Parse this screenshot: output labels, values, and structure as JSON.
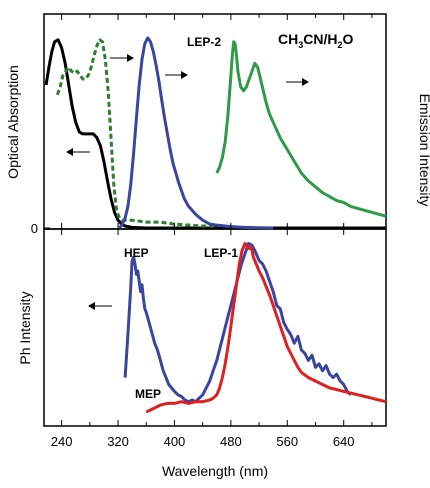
{
  "chart_data": [
    {
      "type": "line",
      "panel": "top",
      "ylabel": "Optical Absorption",
      "ylabel_right": "Emission Intensity",
      "y_tick_labels": [
        "0"
      ],
      "ylim": [
        0,
        1.0
      ],
      "xlim": [
        215,
        700
      ],
      "annotations": [
        "CH3CN/H2O",
        "LEP-2"
      ],
      "solvent_main": "CH",
      "solvent_sub1": "3",
      "solvent_mid": "CN/H",
      "solvent_sub2": "2",
      "solvent_end": "O",
      "series": [
        {
          "style": "solid",
          "color": "#000000",
          "axis": "left",
          "arrow": "left",
          "x": [
            218,
            222,
            226,
            230,
            235,
            240,
            245,
            250,
            255,
            260,
            265,
            270,
            275,
            280,
            285,
            290,
            295,
            300,
            305,
            310,
            315,
            320,
            325,
            330,
            340,
            360,
            380,
            400,
            440,
            480,
            520,
            600,
            700
          ],
          "y": [
            0.73,
            0.82,
            0.9,
            0.95,
            0.96,
            0.92,
            0.84,
            0.73,
            0.62,
            0.54,
            0.49,
            0.48,
            0.48,
            0.48,
            0.48,
            0.46,
            0.42,
            0.34,
            0.24,
            0.15,
            0.08,
            0.04,
            0.02,
            0.01,
            0.003,
            0,
            0,
            0,
            0,
            0,
            0,
            0,
            0
          ]
        },
        {
          "style": "dashed",
          "color": "#2e7d32",
          "axis": "left",
          "arrow": "left",
          "x": [
            234,
            238,
            242,
            246,
            250,
            254,
            258,
            262,
            266,
            270,
            274,
            278,
            282,
            286,
            290,
            294,
            298,
            302,
            306,
            310,
            314,
            318,
            322,
            326,
            330,
            340,
            360,
            380,
            400,
            440,
            460
          ],
          "y": [
            0.68,
            0.72,
            0.78,
            0.8,
            0.82,
            0.8,
            0.79,
            0.8,
            0.78,
            0.76,
            0.76,
            0.78,
            0.82,
            0.88,
            0.93,
            0.96,
            0.95,
            0.86,
            0.7,
            0.46,
            0.22,
            0.09,
            0.05,
            0.04,
            0.04,
            0.04,
            0.03,
            0.03,
            0.02,
            0.01,
            0.01
          ]
        },
        {
          "style": "solid",
          "color": "#3a45a0",
          "axis": "right",
          "arrow": "right",
          "x": [
            322,
            326,
            330,
            334,
            338,
            342,
            346,
            350,
            354,
            358,
            362,
            366,
            370,
            374,
            378,
            382,
            386,
            390,
            394,
            398,
            402,
            406,
            410,
            414,
            420,
            430,
            440,
            450,
            460,
            480,
            500,
            520,
            540
          ],
          "y": [
            0.0,
            0.02,
            0.05,
            0.11,
            0.22,
            0.38,
            0.56,
            0.73,
            0.86,
            0.94,
            0.97,
            0.95,
            0.9,
            0.83,
            0.75,
            0.65,
            0.56,
            0.48,
            0.4,
            0.33,
            0.28,
            0.23,
            0.19,
            0.15,
            0.11,
            0.07,
            0.04,
            0.02,
            0.015,
            0.007,
            0.003,
            0.001,
            0
          ]
        },
        {
          "style": "solid",
          "color": "#2e9a4a",
          "axis": "right",
          "arrow": "right",
          "x": [
            460,
            464,
            468,
            472,
            476,
            480,
            482,
            484,
            486,
            488,
            490,
            494,
            498,
            502,
            506,
            510,
            514,
            518,
            522,
            526,
            530,
            535,
            540,
            545,
            550,
            560,
            570,
            580,
            590,
            600,
            610,
            620,
            630,
            640,
            650,
            660,
            670,
            680,
            690,
            700
          ],
          "y": [
            0.28,
            0.31,
            0.36,
            0.44,
            0.58,
            0.78,
            0.88,
            0.95,
            0.94,
            0.88,
            0.8,
            0.72,
            0.7,
            0.72,
            0.76,
            0.8,
            0.84,
            0.82,
            0.76,
            0.7,
            0.64,
            0.58,
            0.54,
            0.5,
            0.46,
            0.4,
            0.34,
            0.28,
            0.24,
            0.21,
            0.18,
            0.16,
            0.14,
            0.13,
            0.11,
            0.1,
            0.09,
            0.08,
            0.07,
            0.06
          ]
        }
      ]
    },
    {
      "type": "line",
      "panel": "bottom",
      "xlabel": "Wavelength (nm)",
      "ylabel": "Ph Intensity",
      "xlim": [
        215,
        700
      ],
      "ylim": [
        0,
        1.0
      ],
      "x_ticks": [
        240,
        320,
        400,
        480,
        560,
        640
      ],
      "x_tick_labels": [
        "240",
        "320",
        "400",
        "480",
        "560",
        "640"
      ],
      "annotations": [
        "HEP",
        "LEP-1",
        "MEP"
      ],
      "series": [
        {
          "style": "solid",
          "color": "#3a45a0",
          "arrow": "left",
          "x": [
            330,
            334,
            338,
            340,
            342,
            344,
            346,
            348,
            350,
            352,
            354,
            356,
            358,
            360,
            364,
            368,
            372,
            376,
            380,
            384,
            388,
            392,
            396,
            400,
            405,
            410,
            415,
            420,
            425,
            430,
            435,
            440,
            445,
            450,
            455,
            460,
            465,
            470,
            475,
            480,
            485,
            490,
            495,
            500,
            505,
            510,
            515,
            520,
            525,
            530,
            535,
            540,
            545,
            550,
            555,
            560,
            565,
            570,
            575,
            580,
            585,
            590,
            595,
            600,
            605,
            610,
            615,
            620,
            625,
            630,
            635,
            640,
            645,
            650
          ],
          "y": [
            0.2,
            0.45,
            0.72,
            0.88,
            0.9,
            0.86,
            0.8,
            0.82,
            0.76,
            0.7,
            0.74,
            0.66,
            0.6,
            0.58,
            0.52,
            0.46,
            0.4,
            0.36,
            0.3,
            0.24,
            0.2,
            0.16,
            0.14,
            0.12,
            0.1,
            0.09,
            0.07,
            0.06,
            0.07,
            0.06,
            0.08,
            0.1,
            0.14,
            0.18,
            0.24,
            0.3,
            0.38,
            0.46,
            0.54,
            0.62,
            0.7,
            0.78,
            0.86,
            0.92,
            0.98,
            0.97,
            0.93,
            0.88,
            0.86,
            0.82,
            0.76,
            0.7,
            0.62,
            0.6,
            0.52,
            0.48,
            0.45,
            0.4,
            0.44,
            0.36,
            0.34,
            0.3,
            0.33,
            0.26,
            0.28,
            0.24,
            0.27,
            0.22,
            0.2,
            0.22,
            0.18,
            0.16,
            0.12,
            0.1
          ]
        },
        {
          "style": "solid",
          "color": "#e02020",
          "arrow": "none",
          "x": [
            360,
            370,
            380,
            390,
            400,
            410,
            420,
            430,
            440,
            450,
            455,
            460,
            462,
            464,
            466,
            468,
            470,
            472,
            474,
            476,
            478,
            480,
            482,
            484,
            486,
            488,
            490,
            492,
            494,
            496,
            498,
            500,
            502,
            504,
            506,
            508,
            510,
            512,
            514,
            516,
            518,
            520,
            525,
            530,
            535,
            540,
            545,
            550,
            555,
            560,
            565,
            570,
            575,
            580,
            590,
            600,
            610,
            620,
            630,
            640,
            650,
            660,
            670,
            680,
            690,
            700
          ],
          "y": [
            0.0,
            0.02,
            0.04,
            0.05,
            0.05,
            0.06,
            0.05,
            0.06,
            0.06,
            0.07,
            0.08,
            0.1,
            0.12,
            0.14,
            0.17,
            0.2,
            0.24,
            0.28,
            0.33,
            0.38,
            0.44,
            0.5,
            0.56,
            0.62,
            0.68,
            0.74,
            0.8,
            0.86,
            0.9,
            0.94,
            0.96,
            0.98,
            0.97,
            0.96,
            0.95,
            0.96,
            0.94,
            0.9,
            0.88,
            0.86,
            0.84,
            0.82,
            0.78,
            0.73,
            0.68,
            0.62,
            0.56,
            0.5,
            0.44,
            0.38,
            0.34,
            0.3,
            0.26,
            0.23,
            0.2,
            0.18,
            0.16,
            0.14,
            0.13,
            0.12,
            0.11,
            0.1,
            0.09,
            0.08,
            0.07,
            0.06
          ]
        }
      ]
    }
  ]
}
